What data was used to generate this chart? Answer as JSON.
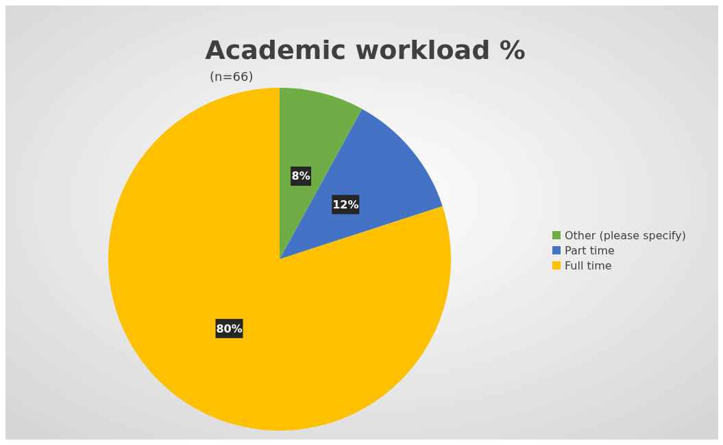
{
  "chart_data": {
    "type": "pie",
    "title": "Academic workload %",
    "subtitle": "(n=66)",
    "categories": [
      "Other (please specify)",
      "Part time",
      "Full time"
    ],
    "values": [
      8,
      12,
      80
    ],
    "colors": [
      "#70ad47",
      "#4472c4",
      "#ffc000"
    ],
    "value_labels": [
      "8%",
      "12%",
      "80%"
    ],
    "legend": "right"
  }
}
